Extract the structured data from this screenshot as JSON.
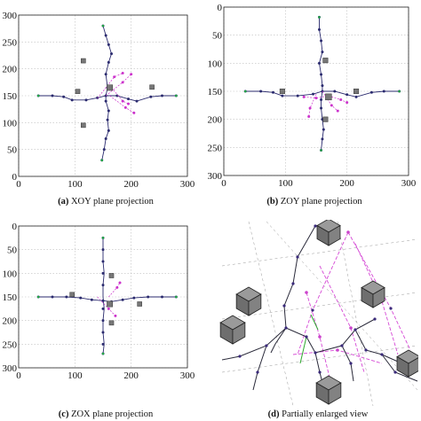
{
  "chart_data": [
    {
      "type": "scatter",
      "id": "a",
      "caption_letter": "(a)",
      "caption_text": " XOY plane projection",
      "xlim": [
        0,
        300
      ],
      "ylim": [
        0,
        300
      ],
      "y_inverted": false,
      "xticks": [
        0,
        100,
        200,
        300
      ],
      "yticks": [
        0,
        50,
        100,
        150,
        200,
        250,
        300
      ],
      "grid": true,
      "series": [
        {
          "color": "#2a2a6e",
          "polylines": [
            [
              [
                35,
                150
              ],
              [
                60,
                150
              ],
              [
                80,
                148
              ],
              [
                95,
                142
              ],
              [
                120,
                142
              ],
              [
                140,
                146
              ],
              [
                155,
                150
              ],
              [
                175,
                150
              ],
              [
                195,
                144
              ],
              [
                210,
                140
              ],
              [
                235,
                148
              ],
              [
                255,
                150
              ],
              [
                280,
                150
              ]
            ],
            [
              [
                148,
                30
              ],
              [
                152,
                50
              ],
              [
                155,
                70
              ],
              [
                160,
                85
              ],
              [
                158,
                105
              ],
              [
                160,
                122
              ],
              [
                155,
                140
              ],
              [
                155,
                150
              ],
              [
                158,
                165
              ],
              [
                155,
                190
              ],
              [
                160,
                212
              ],
              [
                165,
                228
              ],
              [
                160,
                245
              ],
              [
                155,
                262
              ],
              [
                150,
                280
              ]
            ]
          ],
          "points": [
            [
              35,
              150
            ],
            [
              60,
              150
            ],
            [
              80,
              148
            ],
            [
              95,
              142
            ],
            [
              120,
              142
            ],
            [
              140,
              146
            ],
            [
              155,
              150
            ],
            [
              175,
              150
            ],
            [
              195,
              144
            ],
            [
              210,
              140
            ],
            [
              235,
              148
            ],
            [
              255,
              150
            ],
            [
              280,
              150
            ],
            [
              148,
              30
            ],
            [
              152,
              50
            ],
            [
              155,
              70
            ],
            [
              160,
              85
            ],
            [
              158,
              105
            ],
            [
              160,
              122
            ],
            [
              155,
              140
            ],
            [
              158,
              165
            ],
            [
              155,
              190
            ],
            [
              160,
              212
            ],
            [
              165,
              228
            ],
            [
              160,
              245
            ],
            [
              155,
              262
            ],
            [
              150,
              280
            ]
          ]
        },
        {
          "color": "#cc33cc",
          "polylines": [
            [
              [
                155,
                150
              ],
              [
                185,
                175
              ],
              [
                200,
                190
              ]
            ],
            [
              [
                162,
                150
              ],
              [
                190,
                128
              ],
              [
                205,
                118
              ]
            ],
            [
              [
                140,
                145
              ],
              [
                170,
                185
              ],
              [
                185,
                192
              ]
            ],
            [
              [
                165,
                165
              ],
              [
                185,
                140
              ],
              [
                195,
                135
              ]
            ]
          ],
          "points": [
            [
              185,
              175
            ],
            [
              200,
              190
            ],
            [
              190,
              128
            ],
            [
              205,
              118
            ],
            [
              170,
              185
            ],
            [
              185,
              192
            ],
            [
              185,
              140
            ],
            [
              195,
              135
            ]
          ]
        }
      ],
      "blocks": [
        {
          "x": 105,
          "y": 158,
          "s": 8
        },
        {
          "x": 115,
          "y": 95,
          "s": 8
        },
        {
          "x": 115,
          "y": 215,
          "s": 8
        },
        {
          "x": 162,
          "y": 165,
          "s": 10
        },
        {
          "x": 237,
          "y": 166,
          "s": 8
        }
      ]
    },
    {
      "type": "scatter",
      "id": "b",
      "caption_letter": "(b)",
      "caption_text": " ZOY plane projection",
      "xlim": [
        0,
        300
      ],
      "ylim": [
        0,
        300
      ],
      "y_inverted": true,
      "xticks": [
        0,
        100,
        200,
        300
      ],
      "yticks": [
        0,
        50,
        100,
        150,
        200,
        250,
        300
      ],
      "grid": true,
      "series": [
        {
          "color": "#2a2a6e",
          "polylines": [
            [
              [
                35,
                150
              ],
              [
                60,
                150
              ],
              [
                80,
                152
              ],
              [
                95,
                158
              ],
              [
                120,
                158
              ],
              [
                145,
                155
              ],
              [
                160,
                150
              ],
              [
                180,
                150
              ],
              [
                200,
                156
              ],
              [
                215,
                160
              ],
              [
                240,
                152
              ],
              [
                260,
                150
              ],
              [
                285,
                150
              ]
            ],
            [
              [
                155,
                18
              ],
              [
                155,
                40
              ],
              [
                158,
                60
              ],
              [
                160,
                80
              ],
              [
                155,
                100
              ],
              [
                158,
                120
              ],
              [
                160,
                140
              ],
              [
                160,
                150
              ],
              [
                158,
                165
              ],
              [
                158,
                180
              ],
              [
                160,
                200
              ],
              [
                162,
                218
              ],
              [
                160,
                235
              ],
              [
                158,
                255
              ]
            ]
          ],
          "points": [
            [
              35,
              150
            ],
            [
              60,
              150
            ],
            [
              80,
              152
            ],
            [
              95,
              158
            ],
            [
              120,
              158
            ],
            [
              145,
              155
            ],
            [
              160,
              150
            ],
            [
              180,
              150
            ],
            [
              200,
              156
            ],
            [
              215,
              160
            ],
            [
              240,
              152
            ],
            [
              260,
              150
            ],
            [
              285,
              150
            ],
            [
              155,
              18
            ],
            [
              155,
              40
            ],
            [
              158,
              60
            ],
            [
              160,
              80
            ],
            [
              155,
              100
            ],
            [
              158,
              120
            ],
            [
              160,
              140
            ],
            [
              158,
              165
            ],
            [
              158,
              180
            ],
            [
              160,
              200
            ],
            [
              162,
              218
            ],
            [
              160,
              235
            ],
            [
              158,
              255
            ]
          ]
        },
        {
          "color": "#cc33cc",
          "polylines": [
            [
              [
                130,
                160
              ],
              [
                150,
                162
              ],
              [
                170,
                158
              ],
              [
                190,
                165
              ],
              [
                200,
                170
              ]
            ],
            [
              [
                160,
                150
              ],
              [
                175,
                175
              ],
              [
                185,
                185
              ]
            ],
            [
              [
                150,
                155
              ],
              [
                140,
                180
              ],
              [
                138,
                195
              ]
            ]
          ],
          "points": [
            [
              130,
              160
            ],
            [
              150,
              162
            ],
            [
              170,
              158
            ],
            [
              190,
              165
            ],
            [
              200,
              170
            ],
            [
              175,
              175
            ],
            [
              185,
              185
            ],
            [
              140,
              180
            ],
            [
              138,
              195
            ]
          ]
        }
      ],
      "blocks": [
        {
          "x": 95,
          "y": 150,
          "s": 8
        },
        {
          "x": 165,
          "y": 95,
          "s": 8
        },
        {
          "x": 165,
          "y": 200,
          "s": 8
        },
        {
          "x": 170,
          "y": 160,
          "s": 10
        },
        {
          "x": 215,
          "y": 150,
          "s": 8
        }
      ]
    },
    {
      "type": "scatter",
      "id": "c",
      "caption_letter": "(c)",
      "caption_text": " ZOX plane projection",
      "xlim": [
        0,
        300
      ],
      "ylim": [
        0,
        300
      ],
      "y_inverted": true,
      "xticks": [
        0,
        100,
        200,
        300
      ],
      "yticks": [
        0,
        50,
        100,
        150,
        200,
        250,
        300
      ],
      "grid": true,
      "series": [
        {
          "color": "#2a2a6e",
          "polylines": [
            [
              [
                35,
                150
              ],
              [
                60,
                150
              ],
              [
                85,
                150
              ],
              [
                110,
                152
              ],
              [
                130,
                156
              ],
              [
                150,
                158
              ],
              [
                165,
                160
              ],
              [
                185,
                156
              ],
              [
                205,
                152
              ],
              [
                230,
                150
              ],
              [
                255,
                150
              ],
              [
                280,
                150
              ]
            ],
            [
              [
                150,
                25
              ],
              [
                150,
                50
              ],
              [
                150,
                75
              ],
              [
                152,
                100
              ],
              [
                150,
                125
              ],
              [
                150,
                150
              ],
              [
                152,
                175
              ],
              [
                150,
                200
              ],
              [
                150,
                225
              ],
              [
                152,
                250
              ],
              [
                150,
                270
              ]
            ]
          ],
          "points": [
            [
              35,
              150
            ],
            [
              60,
              150
            ],
            [
              85,
              150
            ],
            [
              110,
              152
            ],
            [
              130,
              156
            ],
            [
              150,
              158
            ],
            [
              165,
              160
            ],
            [
              185,
              156
            ],
            [
              205,
              152
            ],
            [
              230,
              150
            ],
            [
              255,
              150
            ],
            [
              280,
              150
            ],
            [
              150,
              25
            ],
            [
              150,
              50
            ],
            [
              150,
              75
            ],
            [
              150,
              100
            ],
            [
              150,
              125
            ],
            [
              150,
              175
            ],
            [
              150,
              200
            ],
            [
              150,
              225
            ],
            [
              150,
              250
            ],
            [
              150,
              270
            ]
          ]
        },
        {
          "color": "#cc33cc",
          "polylines": [
            [
              [
                140,
                150
              ],
              [
                160,
                175
              ],
              [
                172,
                190
              ]
            ],
            [
              [
                160,
                150
              ],
              [
                175,
                130
              ],
              [
                180,
                120
              ]
            ]
          ],
          "points": [
            [
              160,
              175
            ],
            [
              172,
              190
            ],
            [
              175,
              130
            ],
            [
              180,
              120
            ]
          ]
        }
      ],
      "blocks": [
        {
          "x": 95,
          "y": 145,
          "s": 8
        },
        {
          "x": 165,
          "y": 105,
          "s": 8
        },
        {
          "x": 165,
          "y": 205,
          "s": 8
        },
        {
          "x": 162,
          "y": 165,
          "s": 10
        },
        {
          "x": 215,
          "y": 165,
          "s": 8
        }
      ]
    }
  ],
  "panel_d": {
    "caption_letter": "(d)",
    "caption_text": " Partially enlarged view"
  }
}
